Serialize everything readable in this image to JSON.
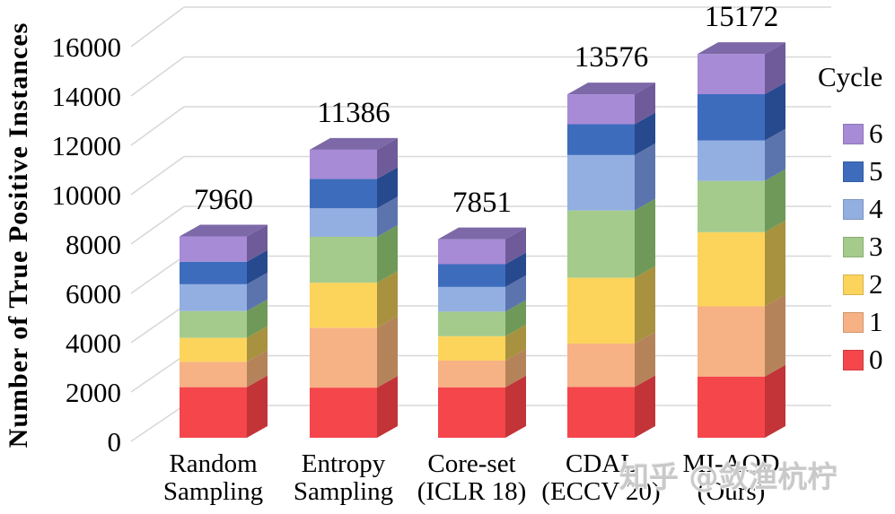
{
  "watermark": {
    "text": "知乎 @敛渔杭柠"
  },
  "chart_data": {
    "type": "bar",
    "subtype": "stacked-3d",
    "title": "",
    "xlabel": "",
    "ylabel": "Number of True Positive Instances",
    "ylim": [
      0,
      16000
    ],
    "ytick_step": 2000,
    "yticks": [
      "0",
      "2000",
      "4000",
      "6000",
      "8000",
      "10000",
      "12000",
      "14000",
      "16000"
    ],
    "grid": true,
    "categories": [
      {
        "line1": "Random",
        "line2": "Sampling"
      },
      {
        "line1": "Entropy",
        "line2": "Sampling"
      },
      {
        "line1": "Core-set",
        "line2": "(ICLR 18)"
      },
      {
        "line1": "CDAL",
        "line2": "(ECCV 20)"
      },
      {
        "line1": "MI-AOD",
        "line2": "(Ours)"
      }
    ],
    "totals": [
      7960,
      11386,
      7851,
      13576,
      15172
    ],
    "total_labels": [
      "7960",
      "11386",
      "7851",
      "13576",
      "15172"
    ],
    "series": [
      {
        "name": "0",
        "color": "#f4464b",
        "side_color": "#c23438",
        "top_color": "#d03a3f",
        "values": [
          2000,
          1980,
          1995,
          2010,
          2420
        ]
      },
      {
        "name": "1",
        "color": "#f6b184",
        "side_color": "#b5835a",
        "top_color": "#cc9469",
        "values": [
          1000,
          2370,
          1055,
          1715,
          2775
        ]
      },
      {
        "name": "2",
        "color": "#fcd45c",
        "side_color": "#a8923f",
        "top_color": "#c4ab48",
        "values": [
          950,
          1780,
          960,
          2600,
          2930
        ]
      },
      {
        "name": "3",
        "color": "#a5cb8c",
        "side_color": "#6f9959",
        "top_color": "#82ad68",
        "values": [
          1060,
          1815,
          975,
          2660,
          2030
        ]
      },
      {
        "name": "4",
        "color": "#93afe1",
        "side_color": "#5c74ad",
        "top_color": "#6e87c2",
        "values": [
          1060,
          1125,
          975,
          2190,
          1595
        ]
      },
      {
        "name": "5",
        "color": "#3e6cbd",
        "side_color": "#27498e",
        "top_color": "#2f55a1",
        "values": [
          890,
          1165,
          900,
          1220,
          1830
        ]
      },
      {
        "name": "6",
        "color": "#a78bd6",
        "side_color": "#6f5b9a",
        "top_color": "#7d68a8",
        "values": [
          1000,
          1151,
          991,
          1181,
          1592
        ]
      }
    ],
    "legend": {
      "title": "Cycle",
      "position": "right",
      "entries": [
        {
          "label": "6",
          "color": "#a78bd6"
        },
        {
          "label": "5",
          "color": "#3e6cbd"
        },
        {
          "label": "4",
          "color": "#93afe1"
        },
        {
          "label": "3",
          "color": "#a5cb8c"
        },
        {
          "label": "2",
          "color": "#fcd45c"
        },
        {
          "label": "1",
          "color": "#f6b184"
        },
        {
          "label": "0",
          "color": "#f4464b"
        }
      ]
    }
  }
}
